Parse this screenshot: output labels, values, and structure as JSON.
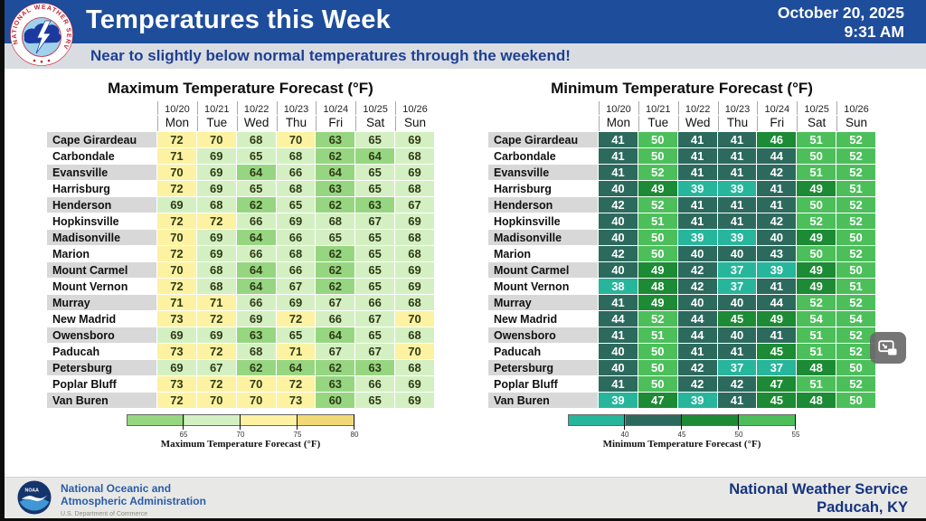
{
  "header": {
    "title": "Temperatures this Week",
    "date": "October 20, 2025",
    "time": "9:31 AM"
  },
  "banner": {
    "text": "Near to slightly below normal temperatures through the weekend!"
  },
  "chart_data": [
    {
      "type": "heatmap",
      "title": "Maximum Temperature Forecast (°F)",
      "columns": [
        {
          "date": "10/20",
          "day": "Mon"
        },
        {
          "date": "10/21",
          "day": "Tue"
        },
        {
          "date": "10/22",
          "day": "Wed"
        },
        {
          "date": "10/23",
          "day": "Thu"
        },
        {
          "date": "10/24",
          "day": "Fri"
        },
        {
          "date": "10/25",
          "day": "Sat"
        },
        {
          "date": "10/26",
          "day": "Sun"
        }
      ],
      "rows": [
        "Cape Girardeau",
        "Carbondale",
        "Evansville",
        "Harrisburg",
        "Henderson",
        "Hopkinsville",
        "Madisonville",
        "Marion",
        "Mount Carmel",
        "Mount Vernon",
        "Murray",
        "New Madrid",
        "Owensboro",
        "Paducah",
        "Petersburg",
        "Poplar Bluff",
        "Van Buren"
      ],
      "values": [
        [
          72,
          70,
          68,
          70,
          63,
          65,
          69
        ],
        [
          71,
          69,
          65,
          68,
          62,
          64,
          68
        ],
        [
          70,
          69,
          64,
          66,
          64,
          65,
          69
        ],
        [
          72,
          69,
          65,
          68,
          63,
          65,
          68
        ],
        [
          69,
          68,
          62,
          65,
          62,
          63,
          67
        ],
        [
          72,
          72,
          66,
          69,
          68,
          67,
          69
        ],
        [
          70,
          69,
          64,
          66,
          65,
          65,
          68
        ],
        [
          72,
          69,
          66,
          68,
          62,
          65,
          68
        ],
        [
          70,
          68,
          64,
          66,
          62,
          65,
          69
        ],
        [
          72,
          68,
          64,
          67,
          62,
          65,
          69
        ],
        [
          71,
          71,
          66,
          69,
          67,
          66,
          68
        ],
        [
          73,
          72,
          69,
          72,
          66,
          67,
          70
        ],
        [
          69,
          69,
          63,
          65,
          64,
          65,
          68
        ],
        [
          73,
          72,
          68,
          71,
          67,
          67,
          70
        ],
        [
          69,
          67,
          62,
          64,
          62,
          63,
          68
        ],
        [
          73,
          72,
          70,
          72,
          63,
          66,
          69
        ],
        [
          72,
          70,
          70,
          73,
          60,
          65,
          69
        ]
      ],
      "cell_text_color": "#2f3b16",
      "colorbar": {
        "label": "Maximum Temperature Forecast (°F)",
        "range": [
          60,
          80
        ],
        "ticks": [
          65,
          70,
          75,
          80
        ],
        "segments": [
          {
            "from": 60,
            "to": 65,
            "color": "#97d681"
          },
          {
            "from": 65,
            "to": 70,
            "color": "#d4f0c3"
          },
          {
            "from": 70,
            "to": 75,
            "color": "#fcf2a2"
          },
          {
            "from": 75,
            "to": 80,
            "color": "#f1d977"
          }
        ]
      }
    },
    {
      "type": "heatmap",
      "title": "Minimum Temperature Forecast (°F)",
      "columns": [
        {
          "date": "10/20",
          "day": "Mon"
        },
        {
          "date": "10/21",
          "day": "Tue"
        },
        {
          "date": "10/22",
          "day": "Wed"
        },
        {
          "date": "10/23",
          "day": "Thu"
        },
        {
          "date": "10/24",
          "day": "Fri"
        },
        {
          "date": "10/25",
          "day": "Sat"
        },
        {
          "date": "10/26",
          "day": "Sun"
        }
      ],
      "rows": [
        "Cape Girardeau",
        "Carbondale",
        "Evansville",
        "Harrisburg",
        "Henderson",
        "Hopkinsville",
        "Madisonville",
        "Marion",
        "Mount Carmel",
        "Mount Vernon",
        "Murray",
        "New Madrid",
        "Owensboro",
        "Paducah",
        "Petersburg",
        "Poplar Bluff",
        "Van Buren"
      ],
      "values": [
        [
          41,
          50,
          41,
          41,
          46,
          51,
          52
        ],
        [
          41,
          50,
          41,
          41,
          44,
          50,
          52
        ],
        [
          41,
          52,
          41,
          41,
          42,
          51,
          52
        ],
        [
          40,
          49,
          39,
          39,
          41,
          49,
          51
        ],
        [
          42,
          52,
          41,
          41,
          41,
          50,
          52
        ],
        [
          40,
          51,
          41,
          41,
          42,
          52,
          52
        ],
        [
          40,
          50,
          39,
          39,
          40,
          49,
          50
        ],
        [
          42,
          50,
          40,
          40,
          43,
          50,
          52
        ],
        [
          40,
          49,
          42,
          37,
          39,
          49,
          50
        ],
        [
          38,
          48,
          42,
          37,
          41,
          49,
          51
        ],
        [
          41,
          49,
          40,
          40,
          44,
          52,
          52
        ],
        [
          44,
          52,
          44,
          45,
          49,
          54,
          54
        ],
        [
          41,
          51,
          44,
          40,
          41,
          51,
          52
        ],
        [
          40,
          50,
          41,
          41,
          45,
          51,
          52
        ],
        [
          40,
          50,
          42,
          37,
          37,
          48,
          50
        ],
        [
          41,
          50,
          42,
          42,
          47,
          51,
          52
        ],
        [
          39,
          47,
          39,
          41,
          45,
          48,
          50
        ]
      ],
      "cell_text_color": "#ffffff",
      "colorbar": {
        "label": "Minimum Temperature Forecast (°F)",
        "range": [
          35,
          55
        ],
        "ticks": [
          40,
          45,
          50,
          55
        ],
        "segments": [
          {
            "from": 35,
            "to": 40,
            "color": "#27b69c"
          },
          {
            "from": 40,
            "to": 45,
            "color": "#2d6a5e"
          },
          {
            "from": 45,
            "to": 50,
            "color": "#1d8a35"
          },
          {
            "from": 50,
            "to": 55,
            "color": "#4cbf5b"
          }
        ]
      }
    }
  ],
  "footer": {
    "noaa_line1": "National Oceanic and",
    "noaa_line2": "Atmospheric Administration",
    "noaa_sub": "U.S. Department of Commerce",
    "office_line1": "National Weather Service",
    "office_line2": "Paducah, KY"
  },
  "icons": {
    "nws_ring_text": "NATIONAL WEATHER SERVICE",
    "noaa_text": "NOAA",
    "pip": "picture-in-picture-icon"
  },
  "colors": {
    "header_bg": "#1e4d9b",
    "banner_bg": "#d9dde2",
    "banner_text": "#1e3f94",
    "footer_bg": "#e8e9e6",
    "office_text": "#16337f"
  }
}
